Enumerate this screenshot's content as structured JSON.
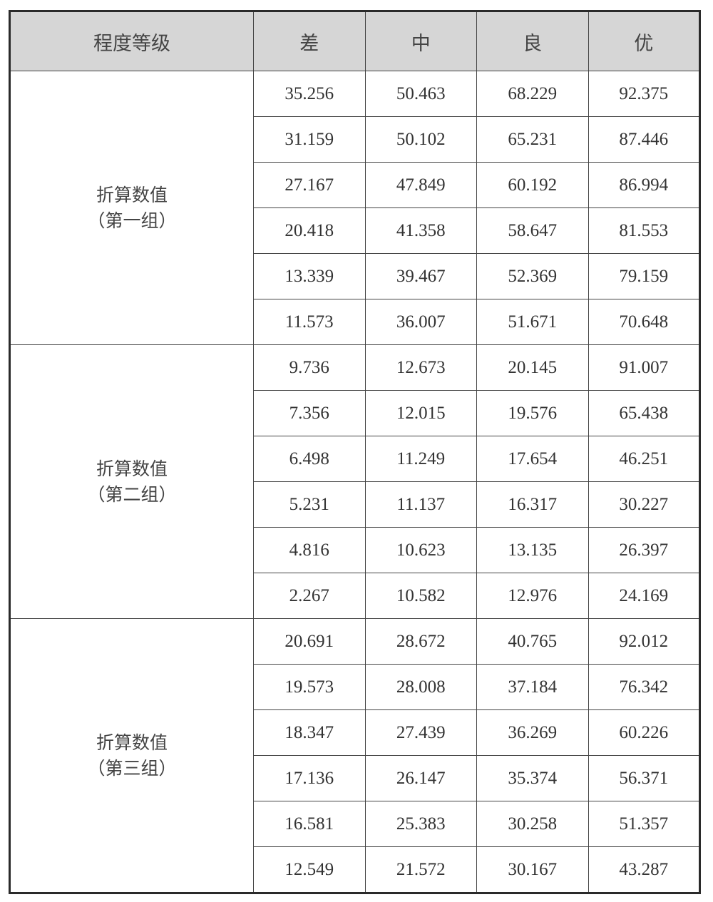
{
  "header": [
    "程度等级",
    "差",
    "中",
    "良",
    "优"
  ],
  "groups": [
    {
      "label_line1": "折算数值",
      "label_line2": "（第一组）",
      "rows": [
        [
          "35.256",
          "50.463",
          "68.229",
          "92.375"
        ],
        [
          "31.159",
          "50.102",
          "65.231",
          "87.446"
        ],
        [
          "27.167",
          "47.849",
          "60.192",
          "86.994"
        ],
        [
          "20.418",
          "41.358",
          "58.647",
          "81.553"
        ],
        [
          "13.339",
          "39.467",
          "52.369",
          "79.159"
        ],
        [
          "11.573",
          "36.007",
          "51.671",
          "70.648"
        ]
      ]
    },
    {
      "label_line1": "折算数值",
      "label_line2": "（第二组）",
      "rows": [
        [
          "9.736",
          "12.673",
          "20.145",
          "91.007"
        ],
        [
          "7.356",
          "12.015",
          "19.576",
          "65.438"
        ],
        [
          "6.498",
          "11.249",
          "17.654",
          "46.251"
        ],
        [
          "5.231",
          "11.137",
          "16.317",
          "30.227"
        ],
        [
          "4.816",
          "10.623",
          "13.135",
          "26.397"
        ],
        [
          "2.267",
          "10.582",
          "12.976",
          "24.169"
        ]
      ]
    },
    {
      "label_line1": "折算数值",
      "label_line2": "（第三组）",
      "rows": [
        [
          "20.691",
          "28.672",
          "40.765",
          "92.012"
        ],
        [
          "19.573",
          "28.008",
          "37.184",
          "76.342"
        ],
        [
          "18.347",
          "27.439",
          "36.269",
          "60.226"
        ],
        [
          "17.136",
          "26.147",
          "35.374",
          "56.371"
        ],
        [
          "16.581",
          "25.383",
          "30.258",
          "51.357"
        ],
        [
          "12.549",
          "21.572",
          "30.167",
          "43.287"
        ]
      ]
    }
  ],
  "colors": {
    "header_bg": "#d6d6d6",
    "border": "#2a2a2a"
  }
}
